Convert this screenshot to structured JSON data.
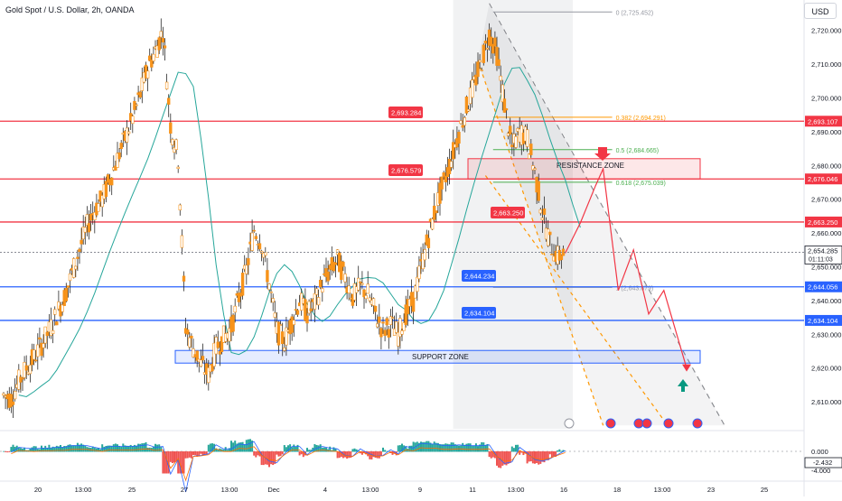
{
  "header": {
    "symbol_title": "Gold Spot / U.S. Dollar, 2h, OANDA",
    "currency_button": "USD"
  },
  "colors": {
    "candle": "#f7931a",
    "candle_wick": "#2a2a2a",
    "resistance_line": "#f23645",
    "support_line": "#2962ff",
    "ma_line": "#26a69a",
    "fib_orange": "#ff9800",
    "fib_green": "#4caf50",
    "projection": "#f23645",
    "hist_pos": "#26a69a",
    "hist_neg": "#ef5350",
    "macd_line": "#2962ff",
    "signal_line": "#ff6d00"
  },
  "chart_data": {
    "type": "candlestick",
    "symbol": "Gold Spot / U.S. Dollar",
    "interval": "2h",
    "source": "OANDA",
    "ylim": [
      2602,
      2729
    ],
    "y_ticks": [
      "2,720.000",
      "2,710.000",
      "2,700.000",
      "2,690.000",
      "2,680.000",
      "2,670.000",
      "2,660.000",
      "2,650.000",
      "2,640.000",
      "2,630.000",
      "2,620.000",
      "2,610.000"
    ],
    "x_ticks": [
      "20",
      "13:00",
      "25",
      "27",
      "13:00",
      "Dec",
      "4",
      "13:00",
      "9",
      "11",
      "13:00",
      "16",
      "18",
      "13:00",
      "23",
      "25"
    ],
    "close_path": [
      [
        0,
        2612
      ],
      [
        2,
        2611
      ],
      [
        4,
        2616
      ],
      [
        6,
        2620
      ],
      [
        8,
        2623
      ],
      [
        10,
        2627
      ],
      [
        12,
        2631
      ],
      [
        14,
        2636
      ],
      [
        16,
        2641
      ],
      [
        18,
        2648
      ],
      [
        20,
        2655
      ],
      [
        22,
        2662
      ],
      [
        24,
        2667
      ],
      [
        26,
        2670
      ],
      [
        28,
        2676
      ],
      [
        30,
        2682
      ],
      [
        32,
        2688
      ],
      [
        34,
        2694
      ],
      [
        36,
        2701
      ],
      [
        38,
        2709
      ],
      [
        40,
        2714
      ],
      [
        42,
        2720
      ],
      [
        44,
        2692
      ],
      [
        46,
        2682
      ],
      [
        48,
        2632
      ],
      [
        50,
        2626
      ],
      [
        52,
        2621
      ],
      [
        54,
        2618
      ],
      [
        56,
        2626
      ],
      [
        58,
        2629
      ],
      [
        60,
        2632
      ],
      [
        62,
        2641
      ],
      [
        64,
        2649
      ],
      [
        66,
        2661
      ],
      [
        68,
        2657
      ],
      [
        70,
        2645
      ],
      [
        72,
        2631
      ],
      [
        74,
        2628
      ],
      [
        76,
        2634
      ],
      [
        78,
        2640
      ],
      [
        80,
        2636
      ],
      [
        82,
        2639
      ],
      [
        84,
        2645
      ],
      [
        86,
        2649
      ],
      [
        88,
        2652
      ],
      [
        90,
        2647
      ],
      [
        92,
        2641
      ],
      [
        94,
        2644
      ],
      [
        96,
        2642
      ],
      [
        98,
        2636
      ],
      [
        100,
        2631
      ],
      [
        102,
        2633
      ],
      [
        104,
        2630
      ],
      [
        106,
        2636
      ],
      [
        108,
        2640
      ],
      [
        110,
        2650
      ],
      [
        112,
        2659
      ],
      [
        114,
        2668
      ],
      [
        116,
        2675
      ],
      [
        118,
        2682
      ],
      [
        120,
        2690
      ],
      [
        122,
        2697
      ],
      [
        124,
        2704
      ],
      [
        126,
        2711
      ],
      [
        128,
        2719
      ],
      [
        130,
        2713
      ],
      [
        132,
        2698
      ],
      [
        134,
        2685
      ],
      [
        136,
        2690
      ],
      [
        138,
        2688
      ],
      [
        140,
        2678
      ],
      [
        142,
        2666
      ],
      [
        144,
        2657
      ],
      [
        146,
        2653
      ],
      [
        148,
        2654
      ]
    ],
    "horizontal_levels": [
      {
        "label": "2,693.284",
        "axis_label": "2,693.107",
        "y": 2693.1,
        "color": "resistance"
      },
      {
        "label": "2,676.579",
        "axis_label": "2,676.046",
        "y": 2676.0,
        "color": "resistance"
      },
      {
        "label": "2,663.250",
        "axis_label": "2,663.250",
        "y": 2663.25,
        "color": "resistance"
      },
      {
        "label": "2,644.234",
        "axis_label": "2,644.056",
        "y": 2644.05,
        "color": "support"
      },
      {
        "label": "2,634.104",
        "axis_label": "2,634.104",
        "y": 2634.1,
        "color": "support"
      }
    ],
    "current_price": {
      "value": "2,654.285",
      "countdown": "01:11:03",
      "y": 2654.285
    },
    "fibonacci": [
      {
        "label": "0 (2,725.452)",
        "y": 2725.45,
        "color": "gray"
      },
      {
        "label": "0.382 (2,694.291)",
        "y": 2694.29,
        "color": "orange"
      },
      {
        "label": "0.5 (2,684.665)",
        "y": 2684.67,
        "color": "green"
      },
      {
        "label": "0.618 (2,675.039)",
        "y": 2675.04,
        "color": "green"
      },
      {
        "label": "1 (2,643.879)",
        "y": 2643.88,
        "color": "gray"
      }
    ],
    "zones": [
      {
        "label": "RESISTANCE ZONE",
        "y_top": 2682.0,
        "y_bottom": 2676.0
      },
      {
        "label": "SUPPORT ZONE",
        "y_top": 2625.2,
        "y_bottom": 2622.0
      }
    ],
    "projection_path": [
      [
        148,
        2654
      ],
      [
        152,
        2663
      ],
      [
        156,
        2674
      ],
      [
        158,
        2679
      ],
      [
        162,
        2643
      ],
      [
        166,
        2655
      ],
      [
        170,
        2636
      ],
      [
        174,
        2643
      ],
      [
        180,
        2620
      ]
    ],
    "indicator": {
      "ticks": [
        "0.000",
        "-4.000"
      ],
      "current_value": "-2.432"
    }
  }
}
